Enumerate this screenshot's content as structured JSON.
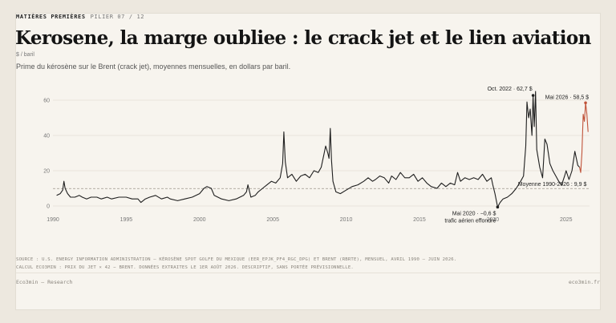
{
  "header": {
    "kicker": "MATIÈRES PREMIÈRES",
    "pillar": "PILIER 07 / 12",
    "title": "Kerosene, la marge oubliee : le crack jet et le lien aviation",
    "unit": "$ / baril",
    "subtitle": "Prime du kérosène sur le Brent (crack jet), moyennes mensuelles, en dollars par baril."
  },
  "footer": {
    "source_line1": "SOURCE : U.S. ENERGY INFORMATION ADMINISTRATION — KÉROSÈNE SPOT GOLFE DU MEXIQUE (EER_EPJK_PF4_RGC_DPG) ET BRENT (RBRTE), MENSUEL, AVRIL 1990 – JUIN 2026.",
    "source_line2": "CALCUL ECO3MIN : PRIX DU JET × 42 − BRENT. DONNÉES EXTRAITES LE 1ER AOÛT 2026. DESCRIPTIF, SANS PORTÉE PRÉVISIONNELLE.",
    "brand_left": "Eco3min — Research",
    "brand_right": "eco3min.fr"
  },
  "chart_data": {
    "type": "line",
    "xlim": [
      1990,
      2026.6
    ],
    "ylim": [
      0,
      70
    ],
    "yticks": [
      0,
      20,
      40,
      60
    ],
    "xticks": [
      1990,
      1995,
      2000,
      2005,
      2010,
      2015,
      2020,
      2025
    ],
    "grid": "horizontal",
    "colors": {
      "main": "#1f1f1f",
      "highlight": "#c0533a",
      "reference": "#9a958c"
    },
    "reference_line": {
      "value": 9.9,
      "label": "Moyenne 1990-2026 : 9,9 $"
    },
    "annotations": [
      {
        "x": 2022.75,
        "y": 62.7,
        "label": "Oct. 2022 · 62,7 $"
      },
      {
        "x": 2020.33,
        "y": -0.6,
        "label": "Mai 2020 · −0,6 $",
        "label2": "trafic aérien effondré"
      },
      {
        "x": 2026.33,
        "y": 58.5,
        "label": "Mai 2026 · 58,5 $"
      }
    ],
    "series": [
      {
        "values": [
          [
            1990.25,
            6
          ],
          [
            1990.5,
            7
          ],
          [
            1990.67,
            9
          ],
          [
            1990.75,
            14
          ],
          [
            1990.83,
            10
          ],
          [
            1991.0,
            7
          ],
          [
            1991.2,
            5
          ],
          [
            1991.5,
            5
          ],
          [
            1991.8,
            6
          ],
          [
            1992.0,
            5
          ],
          [
            1992.3,
            4
          ],
          [
            1992.6,
            5
          ],
          [
            1993.0,
            5
          ],
          [
            1993.3,
            4
          ],
          [
            1993.7,
            5
          ],
          [
            1994.0,
            4
          ],
          [
            1994.5,
            5
          ],
          [
            1995.0,
            5
          ],
          [
            1995.4,
            4
          ],
          [
            1995.8,
            4
          ],
          [
            1996.0,
            2
          ],
          [
            1996.3,
            4
          ],
          [
            1996.6,
            5
          ],
          [
            1997.0,
            6
          ],
          [
            1997.4,
            4
          ],
          [
            1997.8,
            5
          ],
          [
            1998.0,
            4
          ],
          [
            1998.5,
            3
          ],
          [
            1999.0,
            4
          ],
          [
            1999.5,
            5
          ],
          [
            2000.0,
            7
          ],
          [
            2000.3,
            10
          ],
          [
            2000.5,
            11
          ],
          [
            2000.8,
            10
          ],
          [
            2001.0,
            6
          ],
          [
            2001.5,
            4
          ],
          [
            2002.0,
            3
          ],
          [
            2002.5,
            4
          ],
          [
            2003.0,
            6
          ],
          [
            2003.2,
            8
          ],
          [
            2003.3,
            12
          ],
          [
            2003.5,
            5
          ],
          [
            2003.8,
            6
          ],
          [
            2004.0,
            8
          ],
          [
            2004.3,
            10
          ],
          [
            2004.6,
            12
          ],
          [
            2004.9,
            14
          ],
          [
            2005.2,
            13
          ],
          [
            2005.5,
            16
          ],
          [
            2005.67,
            24
          ],
          [
            2005.75,
            42
          ],
          [
            2005.85,
            25
          ],
          [
            2006.0,
            16
          ],
          [
            2006.3,
            18
          ],
          [
            2006.6,
            14
          ],
          [
            2006.9,
            17
          ],
          [
            2007.2,
            18
          ],
          [
            2007.5,
            16
          ],
          [
            2007.8,
            20
          ],
          [
            2008.1,
            19
          ],
          [
            2008.3,
            22
          ],
          [
            2008.5,
            30
          ],
          [
            2008.6,
            34
          ],
          [
            2008.75,
            30
          ],
          [
            2008.83,
            27
          ],
          [
            2008.92,
            44
          ],
          [
            2009.0,
            26
          ],
          [
            2009.1,
            14
          ],
          [
            2009.3,
            8
          ],
          [
            2009.6,
            7
          ],
          [
            2010.0,
            9
          ],
          [
            2010.4,
            11
          ],
          [
            2010.8,
            12
          ],
          [
            2011.2,
            14
          ],
          [
            2011.5,
            16
          ],
          [
            2011.8,
            14
          ],
          [
            2012.0,
            15
          ],
          [
            2012.3,
            17
          ],
          [
            2012.6,
            16
          ],
          [
            2012.9,
            13
          ],
          [
            2013.1,
            17
          ],
          [
            2013.4,
            15
          ],
          [
            2013.7,
            19
          ],
          [
            2014.0,
            16
          ],
          [
            2014.3,
            16
          ],
          [
            2014.6,
            18
          ],
          [
            2014.9,
            14
          ],
          [
            2015.2,
            16
          ],
          [
            2015.5,
            13
          ],
          [
            2015.8,
            11
          ],
          [
            2016.2,
            10
          ],
          [
            2016.5,
            13
          ],
          [
            2016.8,
            11
          ],
          [
            2017.1,
            13
          ],
          [
            2017.4,
            12
          ],
          [
            2017.6,
            19
          ],
          [
            2017.8,
            14
          ],
          [
            2018.1,
            16
          ],
          [
            2018.4,
            15
          ],
          [
            2018.7,
            16
          ],
          [
            2019.0,
            15
          ],
          [
            2019.3,
            18
          ],
          [
            2019.6,
            14
          ],
          [
            2019.9,
            16
          ],
          [
            2020.0,
            12
          ],
          [
            2020.15,
            7
          ],
          [
            2020.33,
            -0.6
          ],
          [
            2020.5,
            2
          ],
          [
            2020.7,
            4
          ],
          [
            2021.0,
            5
          ],
          [
            2021.3,
            7
          ],
          [
            2021.6,
            10
          ],
          [
            2021.9,
            14
          ],
          [
            2022.1,
            17
          ],
          [
            2022.25,
            34
          ],
          [
            2022.33,
            59
          ],
          [
            2022.45,
            50
          ],
          [
            2022.55,
            55
          ],
          [
            2022.67,
            40
          ],
          [
            2022.75,
            62.7
          ],
          [
            2022.83,
            45
          ],
          [
            2022.92,
            65
          ],
          [
            2023.0,
            32
          ],
          [
            2023.2,
            22
          ],
          [
            2023.4,
            16
          ],
          [
            2023.55,
            38
          ],
          [
            2023.7,
            35
          ],
          [
            2023.9,
            24
          ],
          [
            2024.1,
            20
          ],
          [
            2024.3,
            17
          ],
          [
            2024.5,
            14
          ],
          [
            2024.7,
            12
          ],
          [
            2024.9,
            17
          ],
          [
            2025.0,
            20
          ],
          [
            2025.2,
            15
          ],
          [
            2025.4,
            20
          ],
          [
            2025.6,
            31
          ],
          [
            2025.8,
            23
          ],
          [
            2025.92,
            22
          ]
        ]
      },
      {
        "values": [
          [
            2025.92,
            22
          ],
          [
            2026.0,
            19
          ],
          [
            2026.08,
            30
          ],
          [
            2026.17,
            52
          ],
          [
            2026.25,
            48
          ],
          [
            2026.33,
            58.5
          ],
          [
            2026.42,
            52
          ],
          [
            2026.5,
            42
          ]
        ]
      }
    ]
  }
}
